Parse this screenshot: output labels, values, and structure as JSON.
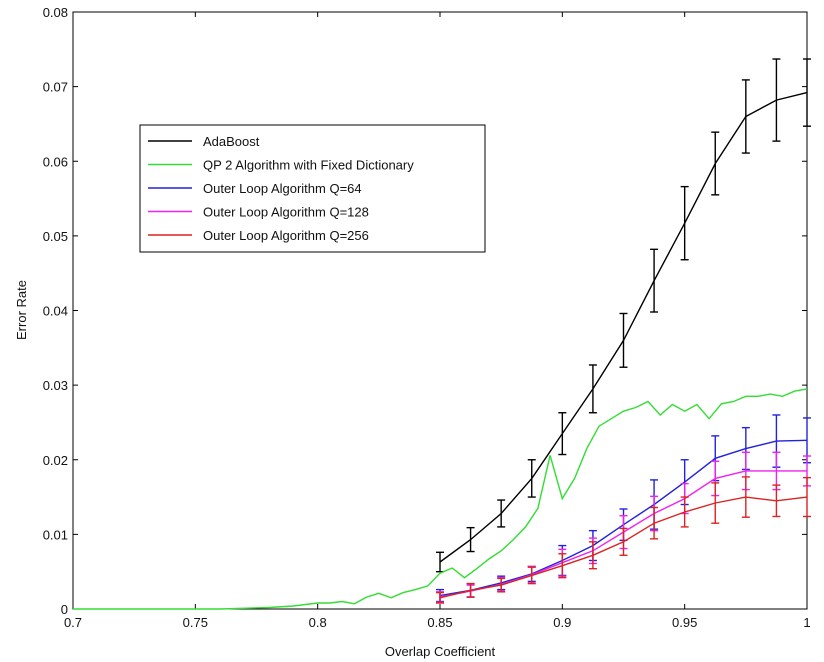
{
  "chart_data": {
    "type": "line",
    "title": "",
    "xlabel": "Overlap Coefficient",
    "ylabel": "Error Rate",
    "xlim": [
      0.7,
      1.0
    ],
    "ylim": [
      0,
      0.08
    ],
    "x_ticks": [
      "0.7",
      "0.75",
      "0.8",
      "0.85",
      "0.9",
      "0.95",
      "1"
    ],
    "y_ticks": [
      "0",
      "0.01",
      "0.02",
      "0.03",
      "0.04",
      "0.05",
      "0.06",
      "0.07",
      "0.08"
    ],
    "grid": false,
    "legend_position": "upper-left",
    "series": [
      {
        "name": "AdaBoost",
        "color": "#000000",
        "x": [
          0.85,
          0.8625,
          0.875,
          0.8875,
          0.9,
          0.9125,
          0.925,
          0.9375,
          0.95,
          0.9625,
          0.975,
          0.9875,
          1.0
        ],
        "y": [
          0.0063,
          0.0093,
          0.0128,
          0.0175,
          0.0235,
          0.0295,
          0.036,
          0.044,
          0.0517,
          0.0597,
          0.066,
          0.0682,
          0.0692
        ],
        "err": [
          0.0013,
          0.0016,
          0.0018,
          0.0025,
          0.0028,
          0.0032,
          0.0036,
          0.0042,
          0.0049,
          0.0042,
          0.0049,
          0.0055,
          0.0045
        ]
      },
      {
        "name": "QP 2 Algorithm with Fixed Dictionary",
        "color": "#33dd33",
        "x": [
          0.7,
          0.72,
          0.74,
          0.76,
          0.78,
          0.79,
          0.8,
          0.805,
          0.81,
          0.815,
          0.82,
          0.825,
          0.83,
          0.835,
          0.84,
          0.845,
          0.85,
          0.855,
          0.86,
          0.865,
          0.87,
          0.875,
          0.88,
          0.885,
          0.89,
          0.895,
          0.9,
          0.905,
          0.91,
          0.915,
          0.92,
          0.925,
          0.93,
          0.935,
          0.94,
          0.945,
          0.95,
          0.955,
          0.96,
          0.965,
          0.97,
          0.975,
          0.98,
          0.985,
          0.99,
          0.995,
          1.0
        ],
        "y": [
          0.0,
          0.0,
          0.0,
          0.0,
          0.0002,
          0.0004,
          0.0008,
          0.0008,
          0.001,
          0.0007,
          0.0016,
          0.0021,
          0.0015,
          0.0022,
          0.0026,
          0.0031,
          0.0048,
          0.0055,
          0.0042,
          0.0054,
          0.0067,
          0.0078,
          0.0093,
          0.011,
          0.0135,
          0.0206,
          0.0148,
          0.0175,
          0.0215,
          0.0245,
          0.0255,
          0.0265,
          0.027,
          0.0278,
          0.026,
          0.0274,
          0.0265,
          0.0274,
          0.0255,
          0.0275,
          0.0278,
          0.0285,
          0.0285,
          0.0288,
          0.0285,
          0.0292,
          0.0295
        ]
      },
      {
        "name": "Outer Loop Algorithm Q=64",
        "color": "#2222dd",
        "x": [
          0.85,
          0.8625,
          0.875,
          0.8875,
          0.9,
          0.9125,
          0.925,
          0.9375,
          0.95,
          0.9625,
          0.975,
          0.9875,
          1.0
        ],
        "y": [
          0.0018,
          0.0025,
          0.0035,
          0.0047,
          0.0065,
          0.0085,
          0.0113,
          0.014,
          0.017,
          0.0202,
          0.0215,
          0.0225,
          0.0226
        ],
        "err": [
          0.0008,
          0.0009,
          0.0009,
          0.001,
          0.002,
          0.002,
          0.0021,
          0.0033,
          0.003,
          0.003,
          0.0028,
          0.0035,
          0.003
        ]
      },
      {
        "name": "Outer Loop Algorithm Q=128",
        "color": "#ee22ee",
        "x": [
          0.85,
          0.8625,
          0.875,
          0.8875,
          0.9,
          0.9125,
          0.925,
          0.9375,
          0.95,
          0.9625,
          0.975,
          0.9875,
          1.0
        ],
        "y": [
          0.0016,
          0.0024,
          0.0033,
          0.0046,
          0.0062,
          0.0078,
          0.0103,
          0.0128,
          0.0148,
          0.0175,
          0.0185,
          0.0185,
          0.0185
        ],
        "err": [
          0.0007,
          0.0008,
          0.0009,
          0.0011,
          0.0018,
          0.0017,
          0.0022,
          0.0023,
          0.002,
          0.0023,
          0.0025,
          0.0025,
          0.002
        ]
      },
      {
        "name": "Outer Loop Algorithm Q=256",
        "color": "#dd2222",
        "x": [
          0.85,
          0.8625,
          0.875,
          0.8875,
          0.9,
          0.9125,
          0.925,
          0.9375,
          0.95,
          0.9625,
          0.975,
          0.9875,
          1.0
        ],
        "y": [
          0.0015,
          0.0025,
          0.0032,
          0.0045,
          0.0058,
          0.0072,
          0.009,
          0.0115,
          0.013,
          0.0142,
          0.015,
          0.0145,
          0.015
        ],
        "err": [
          0.0007,
          0.0009,
          0.0009,
          0.0011,
          0.0016,
          0.0018,
          0.0018,
          0.0021,
          0.002,
          0.0027,
          0.0027,
          0.0021,
          0.0026
        ]
      }
    ]
  }
}
